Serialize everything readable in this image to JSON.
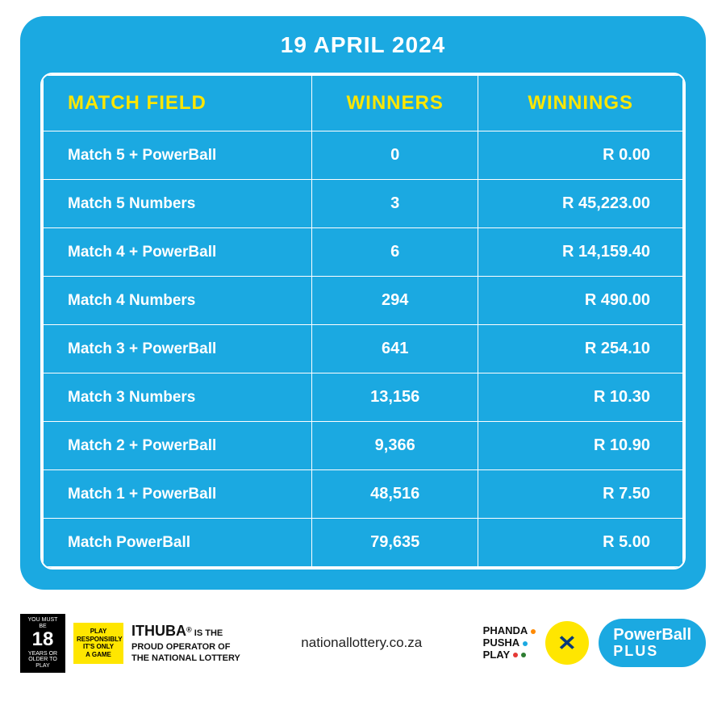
{
  "card": {
    "title": "19 APRIL 2024",
    "background_color": "#1ba9e1",
    "border_color": "#ffffff",
    "header_text_color": "#ffe600",
    "cell_text_color": "#ffffff"
  },
  "table": {
    "columns": [
      "MATCH FIELD",
      "WINNERS",
      "WINNINGS"
    ],
    "rows": [
      {
        "match": "Match 5 + PowerBall",
        "winners": "0",
        "winnings": "R 0.00"
      },
      {
        "match": "Match 5 Numbers",
        "winners": "3",
        "winnings": "R 45,223.00"
      },
      {
        "match": "Match 4 + PowerBall",
        "winners": "6",
        "winnings": "R 14,159.40"
      },
      {
        "match": "Match 4 Numbers",
        "winners": "294",
        "winnings": "R 490.00"
      },
      {
        "match": "Match 3 + PowerBall",
        "winners": "641",
        "winnings": "R 254.10"
      },
      {
        "match": "Match 3 Numbers",
        "winners": "13,156",
        "winnings": "R 10.30"
      },
      {
        "match": "Match 2 + PowerBall",
        "winners": "9,366",
        "winnings": "R 10.90"
      },
      {
        "match": "Match 1 + PowerBall",
        "winners": "48,516",
        "winnings": "R 7.50"
      },
      {
        "match": "Match PowerBall",
        "winners": "79,635",
        "winnings": "R 5.00"
      }
    ]
  },
  "footer": {
    "age_top": "YOU MUST BE",
    "age_num": "18",
    "age_bottom": "YEARS OR OLDER TO PLAY",
    "play_resp_l1": "PLAY",
    "play_resp_l2": "RESPONSIBLY",
    "play_resp_l3": "IT'S ONLY",
    "play_resp_l4": "A GAME",
    "ithuba_brand": "ITHUBA",
    "ithuba_sup": "®",
    "ithuba_rest1": " IS THE",
    "ithuba_rest2": "PROUD OPERATOR OF",
    "ithuba_rest3": "THE NATIONAL LOTTERY",
    "url": "nationallottery.co.za",
    "ppp_l1": "PHANDA",
    "ppp_l2": "PUSHA",
    "ppp_l3": "PLAY",
    "dot_colors": [
      "#ff8a00",
      "#1ba9e1",
      "#e53935",
      "#2e7d32"
    ],
    "natlot_x": "✕",
    "pb_l1": "PowerBall",
    "pb_l2": "PLUS"
  }
}
